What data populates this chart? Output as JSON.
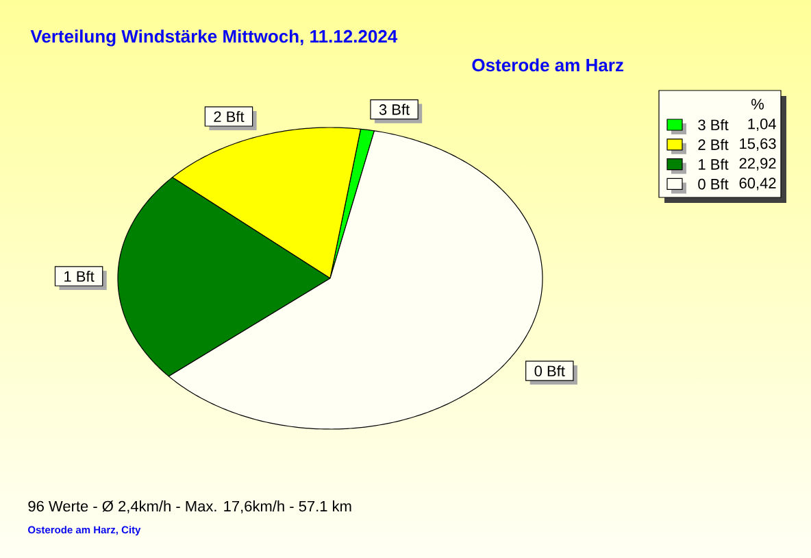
{
  "chart_data": {
    "type": "pie",
    "title": "Verteilung Windstärke  Mittwoch, 11.12.2024",
    "subtitle": "Osterode am Harz",
    "categories": [
      "3 Bft",
      "2 Bft",
      "1 Bft",
      "0 Bft"
    ],
    "values": [
      1.04,
      15.63,
      22.92,
      60.42
    ],
    "value_labels": [
      "1,04",
      "15,63",
      "22,92",
      "60,42"
    ],
    "colors": [
      "#00ff00",
      "#ffff00",
      "#008000",
      "#fffff4"
    ],
    "legend": "top right",
    "legend_title": "%",
    "annotations": [
      "96 Werte  -  Ø 2,4km/h  -  Max. 17,6km/h  -  57.1 km",
      "Osterode am Harz, City"
    ]
  }
}
